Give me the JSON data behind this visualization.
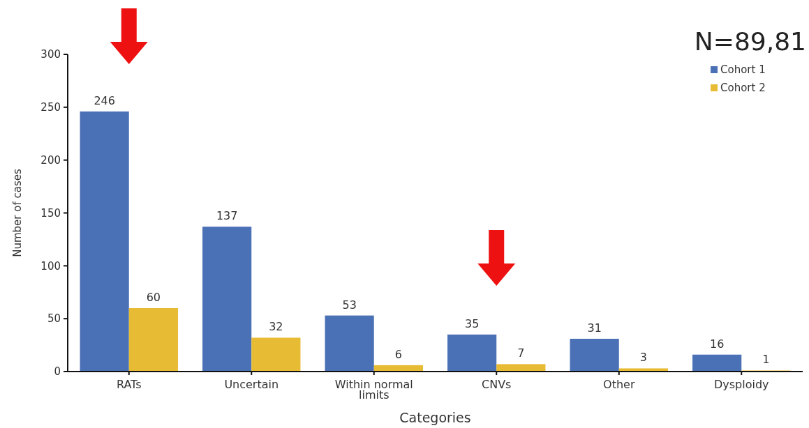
{
  "chart_data": {
    "type": "bar",
    "xlabel": "Categories",
    "ylabel": "Number of cases",
    "categories": [
      "RATs",
      "Uncertain",
      "Within normal limits",
      "CNVs",
      "Other",
      "Dysploidy"
    ],
    "series": [
      {
        "name": "Cohort 1",
        "color": "#4a70b5",
        "values": [
          246,
          137,
          53,
          35,
          31,
          16
        ]
      },
      {
        "name": "Cohort 2",
        "color": "#e8bb34",
        "values": [
          60,
          32,
          6,
          7,
          3,
          1
        ]
      }
    ],
    "ylim": [
      0,
      300
    ],
    "yticks": [
      0,
      50,
      100,
      150,
      200,
      250,
      300
    ],
    "data_labels": true,
    "legend": "top right",
    "grid": false,
    "annotations": [
      "N=89,81"
    ]
  }
}
